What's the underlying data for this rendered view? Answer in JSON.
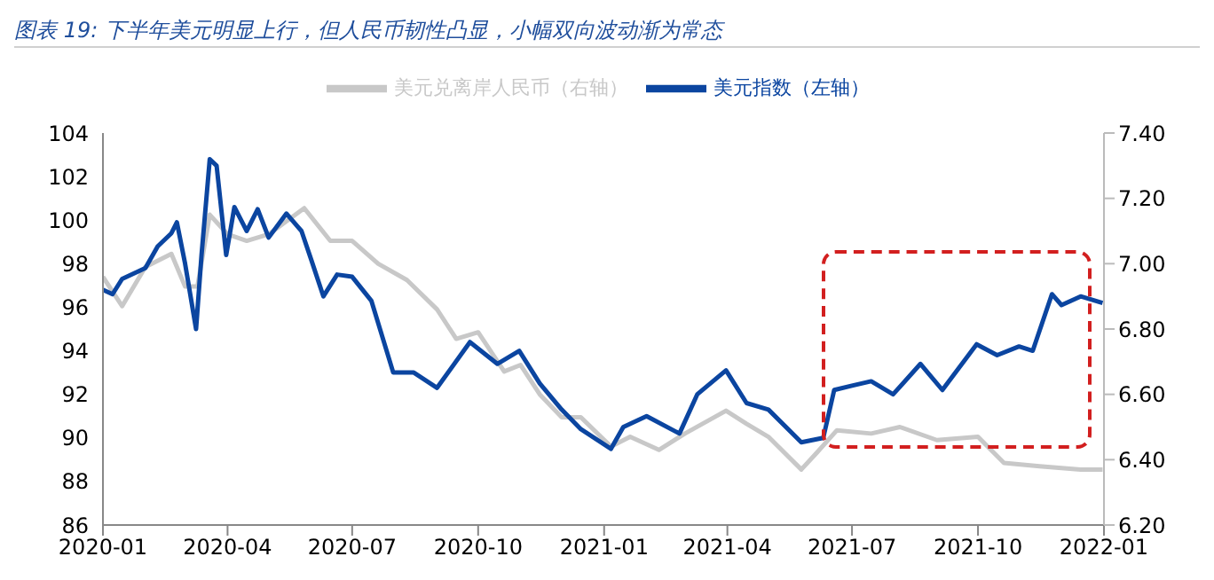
{
  "chart_data": {
    "type": "line",
    "title": "图表 19:  下半年美元明显上行，但人民币韧性凸显，小幅双向波动渐为常态",
    "xlim": [
      "2020-01",
      "2022-01"
    ],
    "xticks": [
      "2020-01",
      "2020-04",
      "2020-07",
      "2020-10",
      "2021-01",
      "2021-04",
      "2021-07",
      "2021-10",
      "2022-01"
    ],
    "ylim": [
      86,
      104
    ],
    "yticks": [
      86,
      88,
      90,
      92,
      94,
      96,
      98,
      100,
      102,
      104
    ],
    "y2lim": [
      6.2,
      7.4
    ],
    "y2ticks": [
      {
        "value": 6.2,
        "label": "6.20"
      },
      {
        "value": 6.4,
        "label": "6.40"
      },
      {
        "value": 6.6,
        "label": "6.60"
      },
      {
        "value": 6.8,
        "label": "6.80"
      },
      {
        "value": 7.0,
        "label": "7.00"
      },
      {
        "value": 7.2,
        "label": "7.20"
      },
      {
        "value": 7.4,
        "label": "7.40"
      }
    ],
    "legend": "top",
    "grid": false,
    "marker": "none",
    "line_style": "solid",
    "series": [
      {
        "name": "美元指数（左轴）",
        "color": "#0b45a0",
        "x": [
          "2020-01-01",
          "2020-01-08",
          "2020-01-15",
          "2020-02-01",
          "2020-02-10",
          "2020-02-20",
          "2020-02-24",
          "2020-03-01",
          "2020-03-09",
          "2020-03-13",
          "2020-03-19",
          "2020-03-24",
          "2020-03-31",
          "2020-04-06",
          "2020-04-15",
          "2020-04-23",
          "2020-05-01",
          "2020-05-14",
          "2020-05-25",
          "2020-06-01",
          "2020-06-10",
          "2020-06-20",
          "2020-07-01",
          "2020-07-15",
          "2020-07-31",
          "2020-08-15",
          "2020-09-01",
          "2020-09-25",
          "2020-10-15",
          "2020-10-31",
          "2020-11-15",
          "2020-12-01",
          "2020-12-15",
          "2021-01-06",
          "2021-01-15",
          "2021-02-01",
          "2021-02-25",
          "2021-03-10",
          "2021-03-31",
          "2021-04-15",
          "2021-05-01",
          "2021-05-25",
          "2021-06-10",
          "2021-06-18",
          "2021-07-01",
          "2021-07-15",
          "2021-07-31",
          "2021-08-20",
          "2021-09-05",
          "2021-09-30",
          "2021-10-15",
          "2021-10-31",
          "2021-11-10",
          "2021-11-24",
          "2021-12-01",
          "2021-12-15",
          "2021-12-31"
        ],
        "values": [
          96.8,
          96.6,
          97.3,
          97.8,
          98.8,
          99.4,
          99.9,
          98.0,
          95.0,
          98.4,
          102.8,
          102.5,
          98.4,
          100.6,
          99.5,
          100.5,
          99.2,
          100.3,
          99.5,
          98.2,
          96.5,
          97.5,
          97.4,
          96.3,
          93.0,
          93.0,
          92.3,
          94.4,
          93.4,
          94.0,
          92.5,
          91.3,
          90.4,
          89.5,
          90.5,
          91.0,
          90.2,
          92.0,
          93.1,
          91.6,
          91.3,
          89.8,
          90.0,
          92.2,
          92.4,
          92.6,
          92.0,
          93.4,
          92.2,
          94.3,
          93.8,
          94.2,
          94.0,
          96.6,
          96.1,
          96.5,
          96.2
        ]
      },
      {
        "name": "美元兑离岸人民币（右轴）",
        "color": "#c8c8c8",
        "axis": "y2",
        "x": [
          "2020-01-01",
          "2020-01-15",
          "2020-02-01",
          "2020-02-20",
          "2020-03-01",
          "2020-03-10",
          "2020-03-19",
          "2020-04-01",
          "2020-04-15",
          "2020-05-01",
          "2020-05-27",
          "2020-06-15",
          "2020-07-01",
          "2020-07-20",
          "2020-08-10",
          "2020-09-01",
          "2020-09-15",
          "2020-10-01",
          "2020-10-20",
          "2020-11-01",
          "2020-11-15",
          "2020-12-01",
          "2020-12-15",
          "2021-01-06",
          "2021-01-20",
          "2021-02-10",
          "2021-03-01",
          "2021-03-31",
          "2021-04-15",
          "2021-05-01",
          "2021-05-25",
          "2021-06-05",
          "2021-06-20",
          "2021-07-15",
          "2021-08-05",
          "2021-09-01",
          "2021-10-01",
          "2021-10-20",
          "2021-11-15",
          "2021-12-15",
          "2021-12-31"
        ],
        "values": [
          6.96,
          6.87,
          6.99,
          7.03,
          6.93,
          6.93,
          7.15,
          7.09,
          7.07,
          7.09,
          7.17,
          7.07,
          7.07,
          7.0,
          6.95,
          6.86,
          6.77,
          6.79,
          6.67,
          6.69,
          6.6,
          6.53,
          6.53,
          6.44,
          6.47,
          6.43,
          6.48,
          6.55,
          6.51,
          6.47,
          6.37,
          6.42,
          6.49,
          6.48,
          6.5,
          6.46,
          6.47,
          6.39,
          6.38,
          6.37,
          6.37
        ]
      }
    ]
  }
}
